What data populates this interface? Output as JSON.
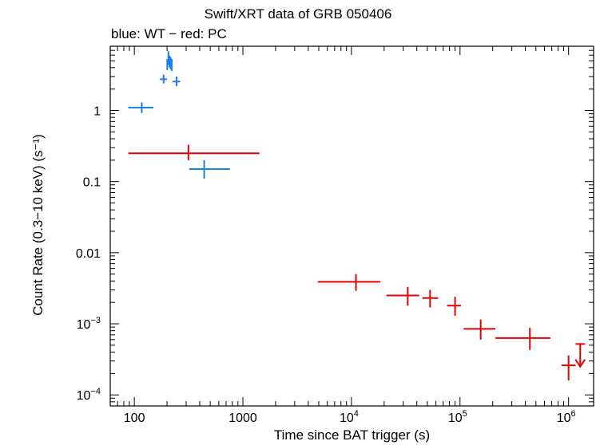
{
  "chart_data": {
    "type": "scatter",
    "title": "Swift/XRT data of GRB 050406",
    "subtitle": "blue: WT − red: PC",
    "xlabel": "Time since BAT trigger (s)",
    "ylabel": "Count Rate (0.3−10 keV) (s⁻¹)",
    "x_scale": "log",
    "y_scale": "log",
    "xlim": [
      60,
      1700000
    ],
    "ylim": [
      7e-05,
      8
    ],
    "grid": false,
    "x_ticks": [
      {
        "value": 100,
        "label": "100"
      },
      {
        "value": 1000,
        "label": "1000"
      },
      {
        "value": 10000,
        "label": "10",
        "exp": "4"
      },
      {
        "value": 100000,
        "label": "10",
        "exp": "5"
      },
      {
        "value": 1000000,
        "label": "10",
        "exp": "6"
      }
    ],
    "y_ticks": [
      {
        "value": 1,
        "label": "1"
      },
      {
        "value": 0.1,
        "label": "0.1"
      },
      {
        "value": 0.01,
        "label": "0.01"
      },
      {
        "value": 0.001,
        "label": "10",
        "exp": "−3"
      },
      {
        "value": 0.0001,
        "label": "10",
        "exp": "−4"
      }
    ],
    "series": [
      {
        "color": "#1a80e6",
        "points": [
          {
            "x": 117,
            "xlo": 88,
            "xhi": 150,
            "y": 1.1,
            "ylo": 0.92,
            "yhi": 1.3
          },
          {
            "x": 186,
            "xlo": 172,
            "xhi": 200,
            "y": 2.75,
            "ylo": 2.4,
            "yhi": 3.2
          },
          {
            "x": 201,
            "xlo": 198,
            "xhi": 204,
            "y": 4.4,
            "ylo": 3.7,
            "yhi": 5.3
          },
          {
            "x": 206,
            "xlo": 203,
            "xhi": 209,
            "y": 5.3,
            "ylo": 4.4,
            "yhi": 6.8
          },
          {
            "x": 211,
            "xlo": 208,
            "xhi": 214,
            "y": 4.8,
            "ylo": 4.0,
            "yhi": 5.9
          },
          {
            "x": 216,
            "xlo": 213,
            "xhi": 219,
            "y": 4.6,
            "ylo": 3.8,
            "yhi": 5.6
          },
          {
            "x": 221,
            "xlo": 218,
            "xhi": 224,
            "y": 4.4,
            "ylo": 3.6,
            "yhi": 5.3
          },
          {
            "x": 245,
            "xlo": 225,
            "xhi": 265,
            "y": 2.55,
            "ylo": 2.2,
            "yhi": 3.0
          },
          {
            "x": 440,
            "xlo": 320,
            "xhi": 760,
            "y": 0.15,
            "ylo": 0.11,
            "yhi": 0.2
          }
        ]
      },
      {
        "color": "#e60000",
        "points": [
          {
            "x": 315,
            "xlo": 88,
            "xhi": 1420,
            "y": 0.25,
            "ylo": 0.2,
            "yhi": 0.33
          },
          {
            "x": 11000,
            "xlo": 4900,
            "xhi": 18500,
            "y": 0.0039,
            "ylo": 0.0029,
            "yhi": 0.005
          },
          {
            "x": 33000,
            "xlo": 21000,
            "xhi": 42000,
            "y": 0.0025,
            "ylo": 0.0018,
            "yhi": 0.0033
          },
          {
            "x": 53000,
            "xlo": 45000,
            "xhi": 63000,
            "y": 0.0023,
            "ylo": 0.0017,
            "yhi": 0.003
          },
          {
            "x": 90000,
            "xlo": 76000,
            "xhi": 102000,
            "y": 0.0018,
            "ylo": 0.0013,
            "yhi": 0.0024
          },
          {
            "x": 155000,
            "xlo": 108000,
            "xhi": 212000,
            "y": 0.00085,
            "ylo": 0.0006,
            "yhi": 0.00115
          },
          {
            "x": 440000,
            "xlo": 212000,
            "xhi": 680000,
            "y": 0.00063,
            "ylo": 0.00043,
            "yhi": 0.00088
          },
          {
            "x": 1000000,
            "xlo": 860000,
            "xhi": 1160000,
            "y": 0.00026,
            "ylo": 0.00016,
            "yhi": 0.00036
          }
        ],
        "upper_limits": [
          {
            "x": 1280000,
            "xlo": 1160000,
            "xhi": 1420000,
            "y": 0.00052,
            "arrow_to": 0.00025
          }
        ]
      }
    ]
  }
}
